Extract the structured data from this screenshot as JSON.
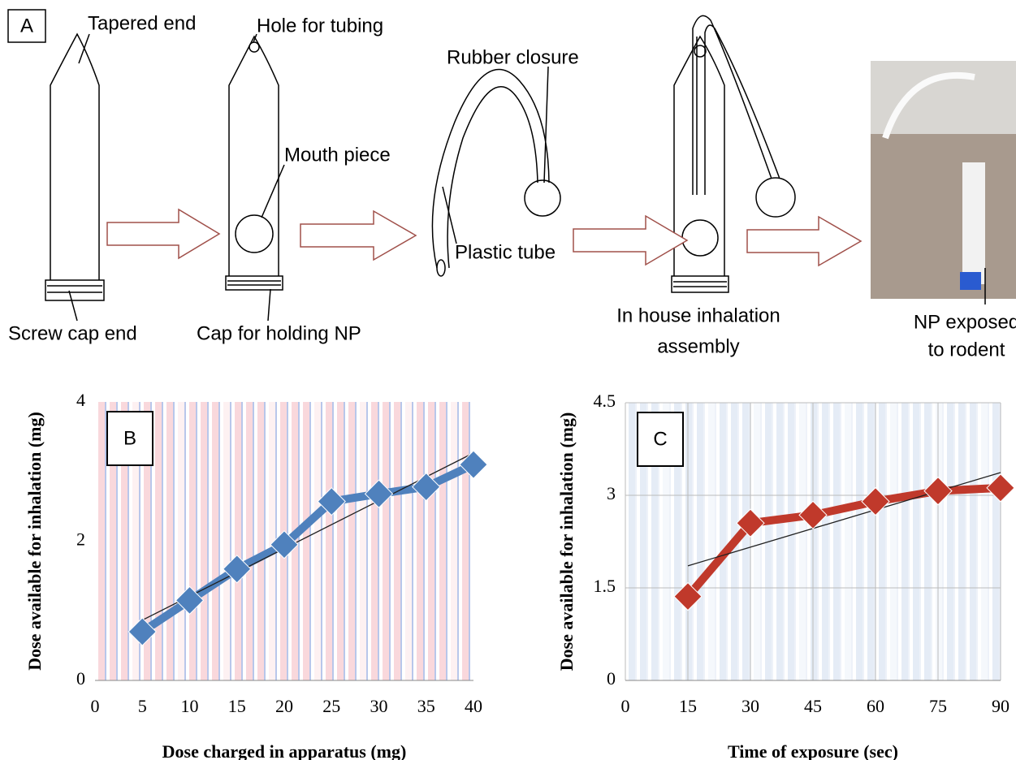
{
  "diagram": {
    "panel_label": "A",
    "labels": {
      "tapered_end": "Tapered end",
      "hole_for_tubing": "Hole for tubing",
      "rubber_closure": "Rubber closure",
      "mouth_piece": "Mouth piece",
      "plastic_tube": "Plastic tube",
      "screw_cap_end": "Screw cap end",
      "cap_for_holding_np": "Cap for holding NP",
      "assembly": [
        "In house inhalation",
        "assembly"
      ],
      "np_exposed": [
        "NP exposed",
        "to rodent"
      ]
    }
  },
  "chart_data": [
    {
      "type": "line",
      "panel_label": "B",
      "xlabel": "Dose charged in apparatus (mg)",
      "ylabel": "Dose available for inhalation (mg)",
      "x": [
        5,
        10,
        15,
        20,
        25,
        30,
        35,
        40
      ],
      "series": [
        {
          "color": "#4f81bd",
          "values": [
            0.7,
            1.15,
            1.6,
            1.95,
            2.57,
            2.68,
            2.78,
            3.1
          ]
        }
      ],
      "xlim": [
        0,
        40
      ],
      "xticks": [
        0,
        5,
        10,
        15,
        20,
        25,
        30,
        35,
        40
      ],
      "ylim": [
        0,
        4
      ],
      "yticks": [
        0,
        2,
        4
      ],
      "trendline": true,
      "stripes": [
        "#f4b8c0",
        "#3c64c8"
      ]
    },
    {
      "type": "line",
      "panel_label": "C",
      "xlabel": "Time of exposure (sec)",
      "ylabel": "Dose available for inhalation (mg)",
      "x": [
        15,
        30,
        45,
        60,
        75,
        90
      ],
      "series": [
        {
          "color": "#c0392b",
          "values": [
            1.36,
            2.55,
            2.68,
            2.9,
            3.07,
            3.12
          ]
        }
      ],
      "xlim": [
        0,
        90
      ],
      "xticks": [
        0,
        15,
        30,
        45,
        60,
        75,
        90
      ],
      "ylim": [
        0,
        4.5
      ],
      "yticks": [
        0,
        1.5,
        3,
        4.5
      ],
      "trendline": true,
      "grid": true,
      "stripes": [
        "#cfdcef",
        "#cfdcef"
      ]
    }
  ]
}
